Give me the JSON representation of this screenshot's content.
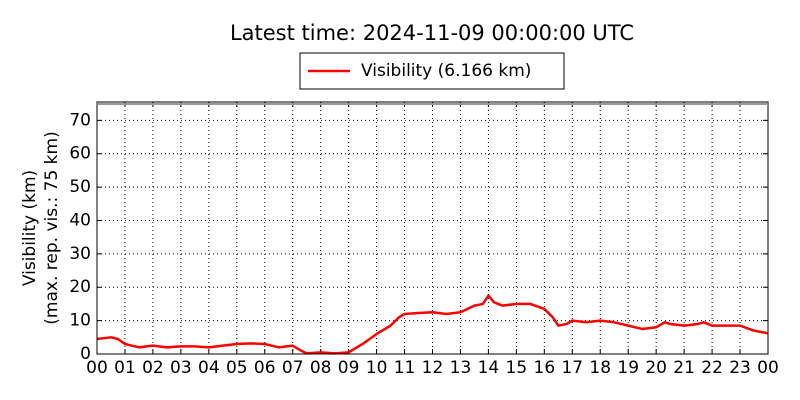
{
  "chart_data": {
    "type": "line",
    "title": "Latest time: 2024-11-09 00:00:00 UTC",
    "ylabel": [
      "Visibility (km)",
      "(max. rep. vis.: 75 km)"
    ],
    "series": [
      {
        "name": "Visibility (6.166 km)",
        "color": "#ff0000",
        "x": [
          0,
          0.5,
          0.75,
          1,
          1.5,
          2,
          2.5,
          3,
          3.5,
          4,
          4.5,
          5,
          5.5,
          6,
          6.5,
          7,
          7.3,
          7.5,
          8,
          8.5,
          9,
          9.5,
          10,
          10.5,
          10.8,
          11,
          11.5,
          12,
          12.5,
          13,
          13.5,
          13.8,
          14,
          14.2,
          14.5,
          15,
          15.5,
          16,
          16.3,
          16.5,
          16.8,
          17,
          17.5,
          18,
          18.5,
          19,
          19.5,
          20,
          20.3,
          20.5,
          21,
          21.5,
          21.7,
          22,
          22.5,
          23,
          23.5,
          24
        ],
        "values": [
          4.5,
          5,
          4.5,
          3,
          2,
          2.5,
          2,
          2.3,
          2.3,
          2,
          2.5,
          3,
          3.2,
          3,
          2,
          2.5,
          1,
          0.2,
          0.5,
          0.2,
          0.5,
          3,
          6,
          8.5,
          11,
          12,
          12.3,
          12.5,
          12,
          12.5,
          14.5,
          15,
          17.5,
          15.5,
          14.5,
          15,
          15,
          13.5,
          11,
          8.5,
          9,
          10,
          9.5,
          10,
          9.5,
          8.5,
          7.5,
          8,
          9.5,
          9,
          8.5,
          9,
          9.5,
          8.5,
          8.5,
          8.5,
          7,
          6.2
        ]
      }
    ],
    "xlim": [
      0,
      24
    ],
    "xticks": [
      {
        "value": 0,
        "label": "00"
      },
      {
        "value": 1,
        "label": "01"
      },
      {
        "value": 2,
        "label": "02"
      },
      {
        "value": 3,
        "label": "03"
      },
      {
        "value": 4,
        "label": "04"
      },
      {
        "value": 5,
        "label": "05"
      },
      {
        "value": 6,
        "label": "06"
      },
      {
        "value": 7,
        "label": "07"
      },
      {
        "value": 8,
        "label": "08"
      },
      {
        "value": 9,
        "label": "09"
      },
      10,
      11,
      12,
      13,
      14,
      15,
      16,
      17,
      18,
      19,
      20,
      21,
      22,
      23,
      {
        "value": 24,
        "label": "00"
      }
    ],
    "ylim": [
      0,
      75.5
    ],
    "yticks": [
      0,
      10,
      20,
      30,
      40,
      50,
      60,
      70
    ],
    "grid": true,
    "legend": "top"
  }
}
